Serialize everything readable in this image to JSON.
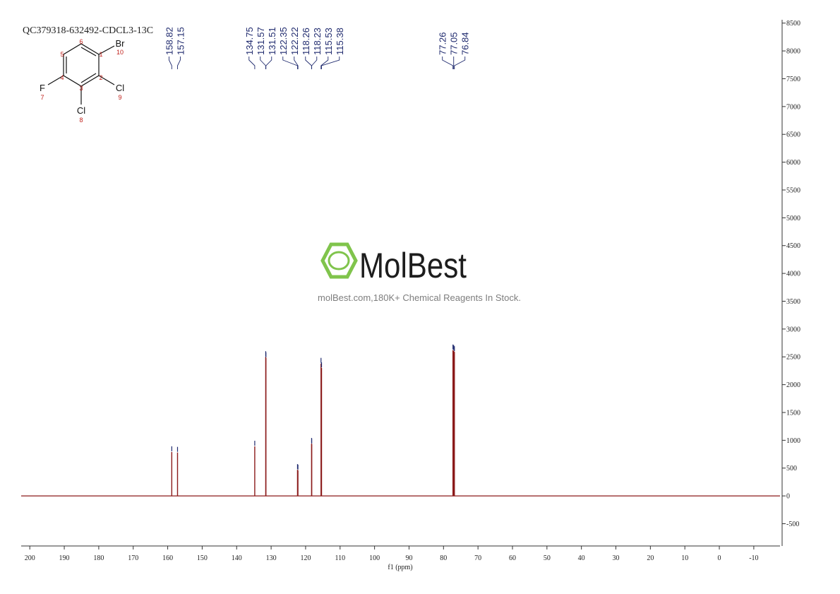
{
  "chart_data": {
    "type": "nmr-spectrum",
    "title": "QC379318-632492-CDCL3-13C",
    "x_label": "f1 (ppm)",
    "x": [
      158.82,
      157.15,
      134.75,
      131.57,
      131.51,
      122.35,
      122.22,
      118.26,
      118.23,
      115.53,
      115.38,
      77.26,
      77.05,
      76.84
    ],
    "values": [
      790,
      780,
      890,
      2500,
      2480,
      470,
      460,
      940,
      930,
      2380,
      2300,
      2620,
      2610,
      2590
    ],
    "color": "#8b1a1a",
    "label_color": "#1f2a6e",
    "xlim": [
      202.5,
      -17.6
    ],
    "xticks": [
      200,
      190,
      180,
      170,
      160,
      150,
      140,
      130,
      120,
      110,
      100,
      90,
      80,
      70,
      60,
      50,
      40,
      30,
      20,
      10,
      0,
      -10
    ],
    "ylim": [
      -900,
      8560
    ],
    "yticks": [
      -500,
      0,
      500,
      1000,
      1500,
      2000,
      2500,
      3000,
      3500,
      4000,
      4500,
      5000,
      5500,
      6000,
      6500,
      7000,
      7500,
      8000,
      8500
    ]
  },
  "watermark": {
    "brand": "MolBest",
    "tagline": "molBest.com,180K+ Chemical Reagents In Stock."
  },
  "structure": {
    "atoms": [
      {
        "symbol": "Br",
        "number": "10"
      },
      {
        "symbol": "Cl",
        "number": "9"
      },
      {
        "symbol": "Cl",
        "number": "8"
      },
      {
        "symbol": "F",
        "number": "7"
      }
    ],
    "locants": [
      "1",
      "2",
      "3",
      "4",
      "5",
      "6"
    ]
  }
}
